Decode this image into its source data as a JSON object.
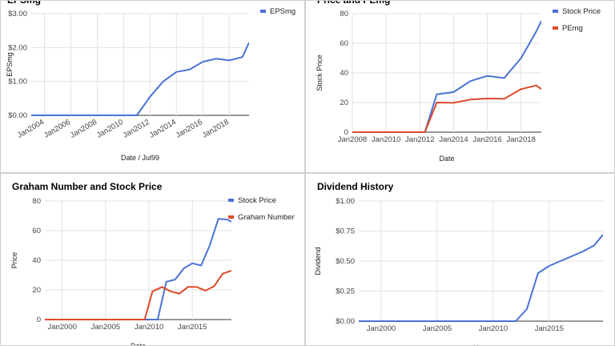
{
  "chart_data": [
    {
      "type": "line",
      "title": "EPSmg",
      "xlabel": "Date / Jul99",
      "ylabel": "EPSmg",
      "x_ticks": [
        "Jan2004",
        "Jan2006",
        "Jan2008",
        "Jan2010",
        "Jan2012",
        "Jan2014",
        "Jan2016",
        "Jan2018"
      ],
      "y_ticks": [
        "$0.00",
        "$1.00",
        "$2.00",
        "$3.00"
      ],
      "xlim": [
        2003.0,
        2019.5
      ],
      "ylim": [
        0,
        3
      ],
      "legend": "right",
      "grid": true,
      "series": [
        {
          "name": "EPSmg",
          "color": "#4a72d6",
          "x": [
            2003.0,
            2011.0,
            2012.0,
            2013.0,
            2014.0,
            2015.0,
            2016.0,
            2017.0,
            2018.0,
            2019.0,
            2019.5
          ],
          "y": [
            0,
            0,
            0.55,
            1.0,
            1.28,
            1.35,
            1.58,
            1.67,
            1.62,
            1.72,
            2.15
          ]
        }
      ]
    },
    {
      "type": "line",
      "title": "Price and PEmg",
      "xlabel": "Date",
      "ylabel": "Stock Price",
      "x_ticks": [
        "Jan2008",
        "Jan2010",
        "Jan2012",
        "Jan2014",
        "Jan2016",
        "Jan2018"
      ],
      "y_ticks": [
        "0",
        "20",
        "40",
        "60",
        "80"
      ],
      "xlim": [
        2008.0,
        2019.2
      ],
      "ylim": [
        0,
        80
      ],
      "legend": "right",
      "grid": true,
      "series": [
        {
          "name": "Stock Price",
          "color": "#4a72d6",
          "x": [
            2008.0,
            2012.0,
            2012.3,
            2013.0,
            2014.0,
            2015.0,
            2016.0,
            2017.0,
            2018.0,
            2018.9,
            2019.2
          ],
          "y": [
            0,
            0,
            0,
            25.5,
            27,
            34.5,
            38,
            36.5,
            50,
            68,
            75
          ]
        },
        {
          "name": "PEmg",
          "color": "#dc4a2b",
          "x": [
            2008.0,
            2012.0,
            2012.3,
            2013.0,
            2014.0,
            2015.0,
            2016.0,
            2017.0,
            2018.0,
            2018.9,
            2019.2
          ],
          "y": [
            0,
            0,
            0,
            20,
            19.8,
            22,
            22.7,
            22.5,
            29,
            31.5,
            29
          ]
        }
      ]
    },
    {
      "type": "line",
      "title": "Graham Number and Stock Price",
      "xlabel": "Date",
      "ylabel": "Price",
      "x_ticks": [
        "Jan2000",
        "Jan2005",
        "Jan2010",
        "Jan2015"
      ],
      "y_ticks": [
        "0",
        "20",
        "40",
        "60",
        "80"
      ],
      "xlim": [
        1998.0,
        2019.5
      ],
      "ylim": [
        0,
        80
      ],
      "legend": "right",
      "grid": true,
      "series": [
        {
          "name": "Stock Price",
          "color": "#4a72d6",
          "x": [
            1998.0,
            2010.4,
            2011.0,
            2012.0,
            2013.0,
            2014.0,
            2015.0,
            2016.0,
            2017.0,
            2018.0,
            2019.0,
            2019.5
          ],
          "y": [
            0,
            0,
            0,
            25.5,
            27,
            34.5,
            38,
            36.5,
            50,
            68,
            67.5,
            66
          ]
        },
        {
          "name": "Graham Number",
          "color": "#dc4a2b",
          "x": [
            1998.0,
            2008.5,
            2009.5,
            2010.4,
            2011.5,
            2012.5,
            2013.5,
            2014.5,
            2015.5,
            2016.5,
            2017.5,
            2018.5,
            2019.5
          ],
          "y": [
            0,
            0,
            0,
            19,
            22,
            19,
            17.5,
            22,
            22,
            19.5,
            22.5,
            31,
            33
          ]
        }
      ]
    },
    {
      "type": "line",
      "title": "Dividend History",
      "xlabel": "Year",
      "ylabel": "Dividend",
      "x_ticks": [
        "Jan2000",
        "Jan2005",
        "Jan2010",
        "Jan2015"
      ],
      "y_ticks": [
        "$0.00",
        "$0.25",
        "$0.50",
        "$0.75",
        "$1.00"
      ],
      "xlim": [
        1998.0,
        2019.8
      ],
      "ylim": [
        0,
        1
      ],
      "legend": "none",
      "grid": true,
      "series": [
        {
          "name": "",
          "color": "#4a72d6",
          "x": [
            1998.0,
            2012.0,
            2013.0,
            2014.0,
            2015.0,
            2016.0,
            2017.0,
            2018.0,
            2019.0,
            2019.8
          ],
          "y": [
            0,
            0,
            0.1,
            0.4,
            0.46,
            0.5,
            0.54,
            0.58,
            0.63,
            0.72
          ]
        }
      ]
    }
  ]
}
